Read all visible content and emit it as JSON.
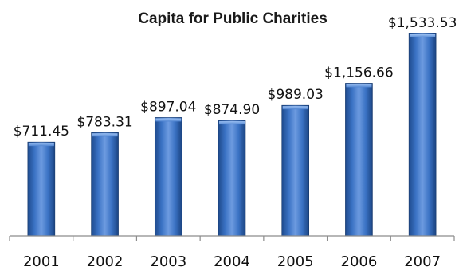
{
  "chart_data": {
    "type": "bar",
    "title": "Capita for Public Charities",
    "categories": [
      "2001",
      "2002",
      "2003",
      "2004",
      "2005",
      "2006",
      "2007"
    ],
    "values": [
      711.45,
      783.31,
      897.04,
      874.9,
      989.03,
      1156.66,
      1533.53
    ],
    "value_labels": [
      "$711.45",
      "$783.31",
      "$897.04",
      "$874.90",
      "$989.03",
      "$1,156.66",
      "$1,533.53"
    ],
    "ylim": [
      0,
      1600
    ],
    "grid": false,
    "legend": "none",
    "bar_color": "#3c73c2"
  }
}
